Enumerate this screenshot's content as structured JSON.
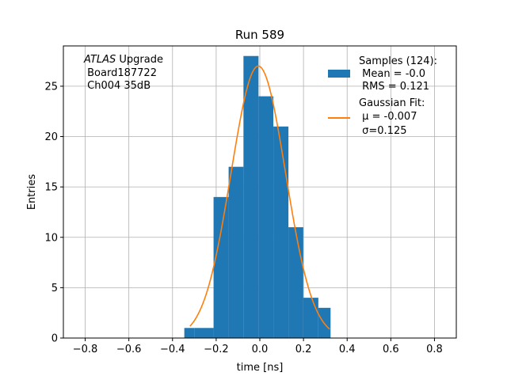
{
  "chart_data": {
    "type": "bar",
    "title": "Run 589",
    "xlabel": "time [ns]",
    "ylabel": "Entries",
    "xlim": [
      -0.9,
      0.9
    ],
    "ylim": [
      0,
      29
    ],
    "x_ticks": [
      -0.8,
      -0.6,
      -0.4,
      -0.2,
      0.0,
      0.2,
      0.4,
      0.6,
      0.8
    ],
    "x_tick_labels": [
      "−0.8",
      "−0.6",
      "−0.4",
      "−0.2",
      "0.0",
      "0.2",
      "0.4",
      "0.6",
      "0.8"
    ],
    "y_ticks": [
      0,
      5,
      10,
      15,
      20,
      25
    ],
    "y_tick_labels": [
      "0",
      "5",
      "10",
      "15",
      "20",
      "25"
    ],
    "grid": true,
    "legend_position": "top-right",
    "histogram": {
      "name": "Samples (124):",
      "name_lines": [
        "Samples (124):",
        " Mean = -0.0",
        " RMS = 0.121"
      ],
      "color": "#1f77b4",
      "bin_edges": [
        -0.346,
        -0.3,
        -0.212,
        -0.143,
        -0.075,
        -0.006,
        0.062,
        0.131,
        0.199,
        0.268,
        0.324
      ],
      "counts": [
        1,
        1,
        14,
        17,
        28,
        24,
        21,
        11,
        4,
        3
      ]
    },
    "fit": {
      "name_lines": [
        "Gaussian Fit:",
        " μ = -0.007",
        " σ=0.125"
      ],
      "color": "#ff7f0e",
      "amplitude": 27.0,
      "mu": -0.007,
      "sigma": 0.125,
      "x_range": [
        -0.32,
        0.32
      ]
    },
    "annotation": {
      "line1_italic": "ATLAS",
      "line1_rest": " Upgrade",
      "line2": " Board187722",
      "line3": " Ch004 35dB"
    }
  }
}
